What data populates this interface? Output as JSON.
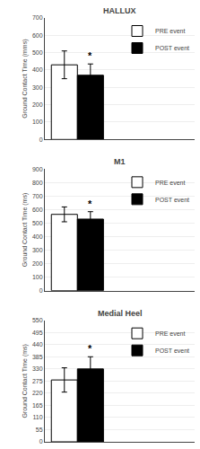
{
  "chart_data": [
    {
      "type": "bar",
      "title": "HALLUX",
      "y_label": "Ground Contact Time (mms)",
      "categories": [
        null
      ],
      "series": [
        {
          "name": "PRE event",
          "color": "white",
          "values": [
            430
          ],
          "errors": [
            80
          ]
        },
        {
          "name": "POST event",
          "color": "black",
          "values": [
            370
          ],
          "errors": [
            65
          ]
        }
      ],
      "ylim": [
        0,
        700
      ],
      "yticks": [
        0,
        100,
        200,
        300,
        400,
        500,
        600,
        700
      ],
      "grid": true,
      "legend": "upper right",
      "tick_labels": "y",
      "annotations": [
        {
          "text": "*",
          "series": "POST event"
        }
      ]
    },
    {
      "type": "bar",
      "title": "M1",
      "y_label": "Ground Contact Time (ms)",
      "categories": [
        null
      ],
      "series": [
        {
          "name": "PRE event",
          "color": "white",
          "values": [
            565
          ],
          "errors": [
            55
          ]
        },
        {
          "name": "POST event",
          "color": "black",
          "values": [
            530
          ],
          "errors": [
            55
          ]
        }
      ],
      "ylim": [
        0,
        900
      ],
      "yticks": [
        0,
        100,
        200,
        300,
        400,
        500,
        600,
        700,
        800,
        900
      ],
      "grid": true,
      "legend": "upper right",
      "tick_labels": "y",
      "annotations": [
        {
          "text": "*",
          "series": "POST event"
        }
      ]
    },
    {
      "type": "bar",
      "title": "Medial Heel",
      "y_label": "Ground Contact Time (ms)",
      "categories": [
        null
      ],
      "series": [
        {
          "name": "PRE event",
          "color": "white",
          "values": [
            280
          ],
          "errors": [
            55
          ]
        },
        {
          "name": "POST event",
          "color": "black",
          "values": [
            330
          ],
          "errors": [
            55
          ]
        }
      ],
      "ylim": [
        0,
        550
      ],
      "yticks": [
        0,
        55,
        110,
        165,
        220,
        275,
        330,
        385,
        440,
        495,
        550
      ],
      "grid": true,
      "legend": "upper right",
      "tick_labels": "y",
      "annotations": [
        {
          "text": "*",
          "series": "POST event"
        }
      ]
    }
  ]
}
